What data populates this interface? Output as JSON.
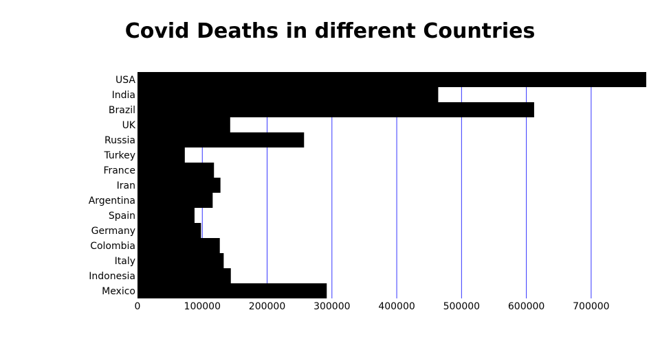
{
  "chart_data": {
    "type": "bar",
    "orientation": "horizontal",
    "title": "Covid Deaths in different Countries",
    "xlabel": "",
    "ylabel": "",
    "categories": [
      "USA",
      "India",
      "Brazil",
      "UK",
      "Russia",
      "Turkey",
      "France",
      "Iran",
      "Argentina",
      "Spain",
      "Germany",
      "Colombia",
      "Italy",
      "Indonesia",
      "Mexico"
    ],
    "values": [
      785000,
      464000,
      612000,
      143000,
      257000,
      73000,
      118000,
      128000,
      116000,
      88000,
      98000,
      127000,
      133000,
      144000,
      292000
    ],
    "xlim": [
      0,
      785000
    ],
    "xticks": [
      0,
      100000,
      200000,
      300000,
      400000,
      500000,
      600000,
      700000
    ],
    "xtick_labels": [
      "0",
      "100000",
      "200000",
      "300000",
      "400000",
      "500000",
      "600000",
      "700000"
    ],
    "grid": "vertical",
    "legend": "none",
    "colors": {
      "bar": "#000000",
      "grid": "#3333ff",
      "background": "#ffffff"
    }
  }
}
